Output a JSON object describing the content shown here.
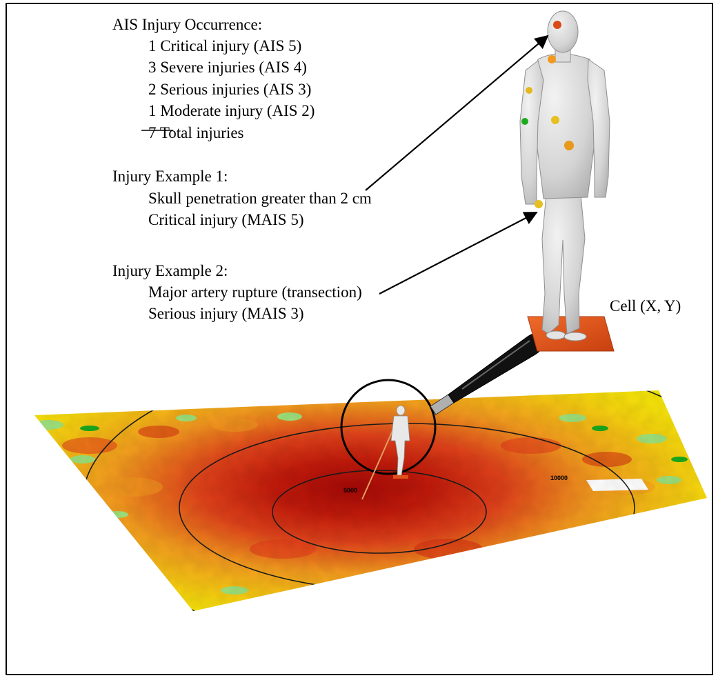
{
  "legend": {
    "title": "AIS Injury Occurrence:",
    "rows": [
      "1 Critical injury (AIS 5)",
      "3 Severe injuries (AIS 4)",
      "2 Serious injuries (AIS 3)",
      "1 Moderate injury (AIS 2)",
      "7 Total injuries"
    ]
  },
  "example1": {
    "title": "Injury Example 1:",
    "line1": "Skull penetration greater than 2 cm",
    "line2": "Critical injury (MAIS 5)"
  },
  "example2": {
    "title": "Injury Example 2:",
    "line1": "Major artery rupture (transection)",
    "line2": "Serious injury (MAIS 3)"
  },
  "cell_label": "Cell (X, Y)",
  "contour_labels": [
    "5000",
    "10000"
  ],
  "colors": {
    "dark_red": "#b00c0a",
    "red": "#d42a10",
    "orange": "#f39a1e",
    "yellow": "#f6f205",
    "light_green": "#9ee07a",
    "green": "#1aaa1e",
    "cell_plate": "#e0521c",
    "mannequin": "#d9d9d9"
  },
  "icons": [
    "magnifier-icon",
    "mannequin-figure"
  ]
}
